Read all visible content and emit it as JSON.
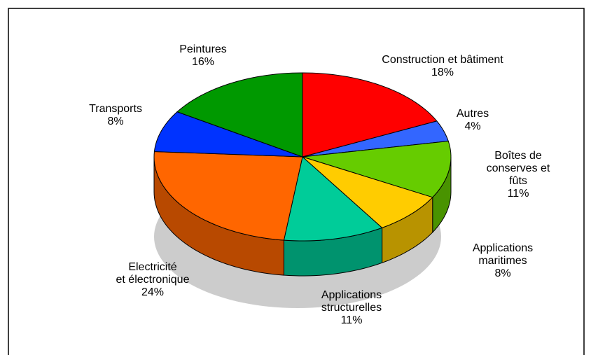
{
  "chart_data": {
    "type": "pie3d",
    "categories": [
      "Construction et bâtiment",
      "Autres",
      "Boîtes de\nconserves et fûts",
      "Applications maritimes",
      "Applications\nstructurelles",
      "Electricité\net électronique",
      "Transports",
      "Peintures"
    ],
    "values": [
      18,
      4,
      11,
      8,
      11,
      24,
      8,
      16
    ],
    "value_labels": [
      "18%",
      "4%",
      "11%",
      "8%",
      "11%",
      "24%",
      "8%",
      "16%"
    ],
    "colors": [
      "#ff0000",
      "#3366ff",
      "#66cc00",
      "#ffcc00",
      "#00cc99",
      "#ff6600",
      "#0033ff",
      "#009900"
    ]
  }
}
